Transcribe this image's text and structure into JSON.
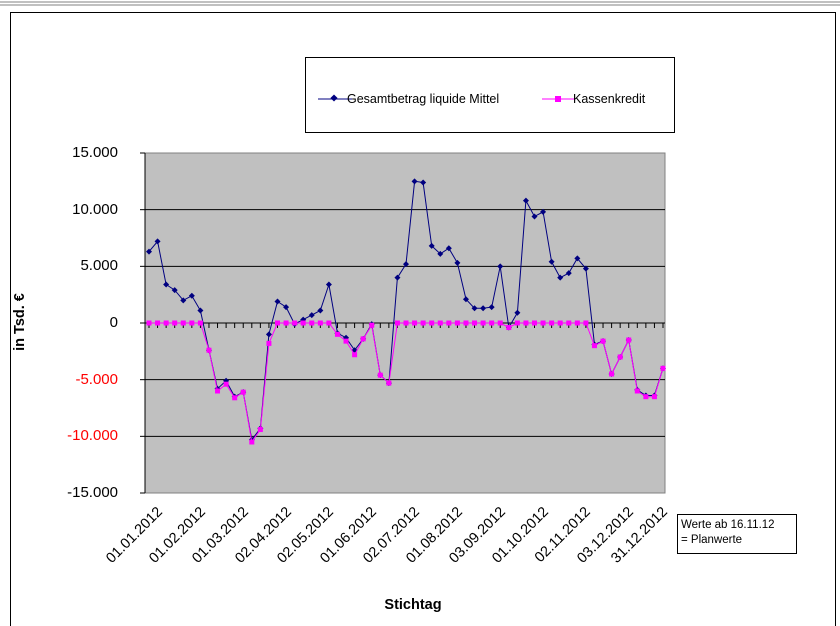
{
  "chart_data": {
    "type": "line",
    "title": "",
    "xlabel": "Stichtag",
    "ylabel": "in Tsd. €",
    "ylim": [
      -15000,
      15000
    ],
    "ytick_values": [
      15000,
      10000,
      5000,
      0,
      -5000,
      -10000,
      -15000
    ],
    "ytick_labels": [
      "15.000",
      "10.000",
      "5.000",
      "0",
      "-5.000",
      "-10.000",
      "-15.000"
    ],
    "ytick_colors": [
      "#000000",
      "#000000",
      "#000000",
      "#000000",
      "#ff0000",
      "#ff0000",
      "#000000"
    ],
    "xtick_labels": [
      "01.01.2012",
      "01.02.2012",
      "01.03.2012",
      "02.04.2012",
      "02.05.2012",
      "01.06.2012",
      "02.07.2012",
      "01.08.2012",
      "03.09.2012",
      "01.10.2012",
      "02.11.2012",
      "03.12.2012",
      "31.12.2012"
    ],
    "xtick_index": [
      0,
      5,
      10,
      15,
      20,
      25,
      30,
      35,
      40,
      45,
      50,
      55,
      59
    ],
    "grid": true,
    "legend_position": "top",
    "plot_background": "#c0c0c0",
    "series": [
      {
        "name": "Gesamtbetrag liquide Mittel",
        "color": "#000080",
        "marker": "diamond",
        "values": [
          6300,
          7200,
          3400,
          2900,
          2000,
          2400,
          1100,
          -2400,
          -5800,
          -5100,
          -6500,
          -6100,
          -10300,
          -9300,
          -1000,
          1900,
          1400,
          -100,
          300,
          700,
          1100,
          3400,
          -900,
          -1300,
          -2400,
          -1400,
          -100,
          -4600,
          -5300,
          4000,
          5200,
          12500,
          12400,
          6800,
          6100,
          6600,
          5300,
          2100,
          1300,
          1300,
          1400,
          5000,
          -400,
          900,
          10800,
          9400,
          9800,
          5400,
          4000,
          4400,
          5700,
          4800,
          -1900,
          -1600,
          -4500,
          -3000,
          -1500,
          -5900,
          -6400,
          -6400,
          -4000
        ]
      },
      {
        "name": "Kassenkredit",
        "color": "#ff00ff",
        "marker": "square",
        "values": [
          0,
          0,
          0,
          0,
          0,
          0,
          0,
          -2400,
          -6000,
          -5400,
          -6600,
          -6100,
          -10500,
          -9400,
          -1800,
          0,
          0,
          0,
          0,
          0,
          0,
          0,
          -1000,
          -1600,
          -2800,
          -1400,
          -200,
          -4600,
          -5300,
          0,
          0,
          0,
          0,
          0,
          0,
          0,
          0,
          0,
          0,
          0,
          0,
          0,
          -400,
          0,
          0,
          0,
          0,
          0,
          0,
          0,
          0,
          0,
          -2000,
          -1600,
          -4500,
          -3000,
          -1500,
          -6000,
          -6500,
          -6500,
          -4000
        ]
      }
    ],
    "annotation": [
      "Werte ab 16.11.12",
      "= Planwerte"
    ]
  }
}
